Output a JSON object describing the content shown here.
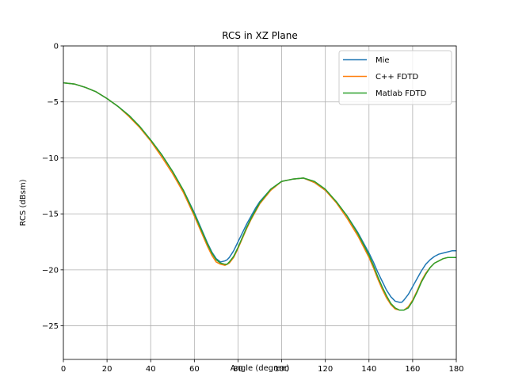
{
  "chart_data": {
    "type": "line",
    "title": "RCS in XZ Plane",
    "xlabel": "Angle (degree)",
    "ylabel": "RCS (dBsm)",
    "xlim": [
      0,
      180
    ],
    "ylim": [
      -28,
      0
    ],
    "xticks": [
      0,
      20,
      40,
      60,
      80,
      100,
      120,
      140,
      160,
      180
    ],
    "yticks": [
      0,
      -5,
      -10,
      -15,
      -20,
      -25
    ],
    "grid": true,
    "legend_position": "top-right",
    "series": [
      {
        "name": "Mie",
        "color": "#1f77b4",
        "x": [
          0,
          5,
          10,
          15,
          20,
          25,
          30,
          35,
          40,
          45,
          50,
          55,
          60,
          62,
          64,
          66,
          68,
          70,
          72,
          74,
          75,
          76,
          78,
          80,
          82,
          84,
          86,
          88,
          90,
          95,
          100,
          105,
          110,
          115,
          120,
          125,
          130,
          135,
          140,
          142,
          144,
          146,
          148,
          150,
          152,
          154,
          155,
          156,
          158,
          160,
          162,
          164,
          166,
          168,
          170,
          172,
          174,
          176,
          178,
          180
        ],
        "y": [
          -3.3,
          -3.4,
          -3.7,
          -4.1,
          -4.7,
          -5.4,
          -6.2,
          -7.2,
          -8.4,
          -9.7,
          -11.2,
          -12.9,
          -14.9,
          -15.8,
          -16.7,
          -17.6,
          -18.4,
          -19.0,
          -19.3,
          -19.2,
          -19.1,
          -18.9,
          -18.3,
          -17.5,
          -16.7,
          -15.9,
          -15.2,
          -14.5,
          -13.9,
          -12.8,
          -12.1,
          -11.9,
          -11.8,
          -12.2,
          -12.9,
          -13.9,
          -15.2,
          -16.7,
          -18.5,
          -19.3,
          -20.2,
          -21.0,
          -21.8,
          -22.4,
          -22.8,
          -22.9,
          -22.9,
          -22.7,
          -22.2,
          -21.5,
          -20.8,
          -20.1,
          -19.5,
          -19.1,
          -18.8,
          -18.6,
          -18.5,
          -18.4,
          -18.3,
          -18.3
        ]
      },
      {
        "name": "C++ FDTD",
        "color": "#ff7f0e",
        "x": [
          0,
          5,
          10,
          15,
          20,
          25,
          30,
          35,
          40,
          45,
          50,
          55,
          60,
          62,
          64,
          66,
          68,
          70,
          72,
          74,
          75,
          76,
          78,
          80,
          82,
          84,
          86,
          88,
          90,
          95,
          100,
          105,
          110,
          115,
          120,
          125,
          130,
          135,
          140,
          142,
          144,
          146,
          148,
          150,
          152,
          154,
          156,
          158,
          160,
          162,
          164,
          166,
          168,
          170,
          172,
          174,
          176,
          178,
          180
        ],
        "y": [
          -3.3,
          -3.4,
          -3.7,
          -4.1,
          -4.7,
          -5.4,
          -6.3,
          -7.3,
          -8.5,
          -9.9,
          -11.4,
          -13.1,
          -15.2,
          -16.1,
          -17.0,
          -17.9,
          -18.7,
          -19.3,
          -19.5,
          -19.6,
          -19.5,
          -19.4,
          -18.9,
          -18.1,
          -17.2,
          -16.3,
          -15.5,
          -14.8,
          -14.1,
          -12.9,
          -12.1,
          -11.9,
          -11.8,
          -12.2,
          -12.9,
          -14.0,
          -15.4,
          -17.0,
          -18.9,
          -19.8,
          -20.8,
          -21.7,
          -22.5,
          -23.1,
          -23.5,
          -23.6,
          -23.6,
          -23.3,
          -22.7,
          -21.9,
          -21.0,
          -20.3,
          -19.8,
          -19.4,
          -19.2,
          -19.0,
          -18.9,
          -18.9,
          -18.9
        ]
      },
      {
        "name": "Matlab FDTD",
        "color": "#2ca02c",
        "x": [
          0,
          5,
          10,
          15,
          20,
          25,
          30,
          35,
          40,
          45,
          50,
          55,
          60,
          62,
          64,
          66,
          68,
          70,
          72,
          74,
          75,
          76,
          78,
          80,
          82,
          84,
          86,
          88,
          90,
          95,
          100,
          105,
          110,
          115,
          120,
          125,
          130,
          135,
          140,
          142,
          144,
          146,
          148,
          150,
          152,
          154,
          156,
          158,
          160,
          162,
          164,
          166,
          168,
          170,
          172,
          174,
          176,
          178,
          180
        ],
        "y": [
          -3.3,
          -3.4,
          -3.7,
          -4.1,
          -4.7,
          -5.4,
          -6.2,
          -7.2,
          -8.4,
          -9.7,
          -11.2,
          -12.9,
          -15.0,
          -15.9,
          -16.8,
          -17.7,
          -18.5,
          -19.1,
          -19.4,
          -19.5,
          -19.5,
          -19.3,
          -18.8,
          -18.0,
          -17.1,
          -16.2,
          -15.4,
          -14.7,
          -14.0,
          -12.8,
          -12.1,
          -11.9,
          -11.8,
          -12.1,
          -12.8,
          -13.9,
          -15.2,
          -16.8,
          -18.7,
          -19.6,
          -20.6,
          -21.5,
          -22.3,
          -23.0,
          -23.4,
          -23.6,
          -23.6,
          -23.4,
          -22.8,
          -22.0,
          -21.1,
          -20.4,
          -19.8,
          -19.4,
          -19.2,
          -19.0,
          -18.9,
          -18.9,
          -18.9
        ]
      }
    ]
  }
}
